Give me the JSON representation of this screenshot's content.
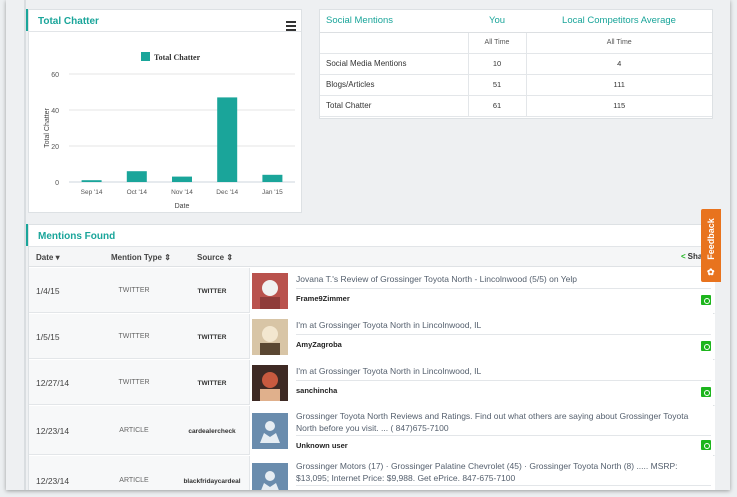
{
  "chatter_panel": {
    "title": "Total Chatter"
  },
  "chart_data": {
    "type": "bar",
    "title": "",
    "categories": [
      "Sep '14",
      "Oct '14",
      "Nov '14",
      "Dec '14",
      "Jan '15"
    ],
    "series": [
      {
        "name": "Total Chatter",
        "values": [
          1,
          6,
          3,
          47,
          4
        ],
        "color": "#1aa59a"
      }
    ],
    "xlabel": "Date",
    "ylabel": "Total Chatter",
    "ylim": [
      0,
      60
    ],
    "yticks": [
      0,
      20,
      40,
      60
    ],
    "legend": "top-center",
    "grid": true
  },
  "social": {
    "headers": [
      "Social Mentions",
      "You",
      "Local Competitors Average"
    ],
    "subheaders": [
      "All Time",
      "All Time"
    ],
    "rows": [
      {
        "label": "Social Media Mentions",
        "you": "10",
        "avg": "4"
      },
      {
        "label": "Blogs/Articles",
        "you": "51",
        "avg": "111"
      },
      {
        "label": "Total Chatter",
        "you": "61",
        "avg": "115"
      }
    ]
  },
  "mentions": {
    "title": "Mentions Found",
    "columns": {
      "date": "Date",
      "type": "Mention Type",
      "source": "Source",
      "share": "Sha"
    },
    "rows": [
      {
        "date": "1/4/15",
        "type": "TWITTER",
        "source": "TWITTER",
        "headline": "Jovana T.'s Review of Grossinger Toyota North - Lincolnwood (5/5) on Yelp",
        "author": "Frame9Zimmer",
        "thumb": "photo-a"
      },
      {
        "date": "1/5/15",
        "type": "TWITTER",
        "source": "TWITTER",
        "headline": "I'm at Grossinger Toyota North in Lincolnwood, IL",
        "author": "AmyZagroba",
        "thumb": "photo-b"
      },
      {
        "date": "12/27/14",
        "type": "TWITTER",
        "source": "TWITTER",
        "headline": "I'm at Grossinger Toyota North in Lincolnwood, IL",
        "author": "sanchincha",
        "thumb": "photo-c"
      },
      {
        "date": "12/23/14",
        "type": "ARTICLE",
        "source": "cardealercheck",
        "headline": "Grossinger Toyota North Reviews and Ratings. Find out what others are saying about Grossinger Toyota North before you visit. ... ( 847)675-7100",
        "author": "Unknown user",
        "thumb": "avatar"
      },
      {
        "date": "12/23/14",
        "type": "ARTICLE",
        "source": "blackfridaycardeal",
        "headline": "Grossinger Motors (17) · Grossinger Palatine Chevrolet (45) · Grossinger Toyota North (8) ..... MSRP: $13,095; Internet Price: $9,988. Get ePrice. 847-675-7100",
        "author": "",
        "thumb": "avatar"
      }
    ]
  },
  "feedback_label": "Feedback",
  "colors": {
    "accent": "#1aa59a",
    "share": "#1db51d",
    "feedback": "#e8731e"
  }
}
